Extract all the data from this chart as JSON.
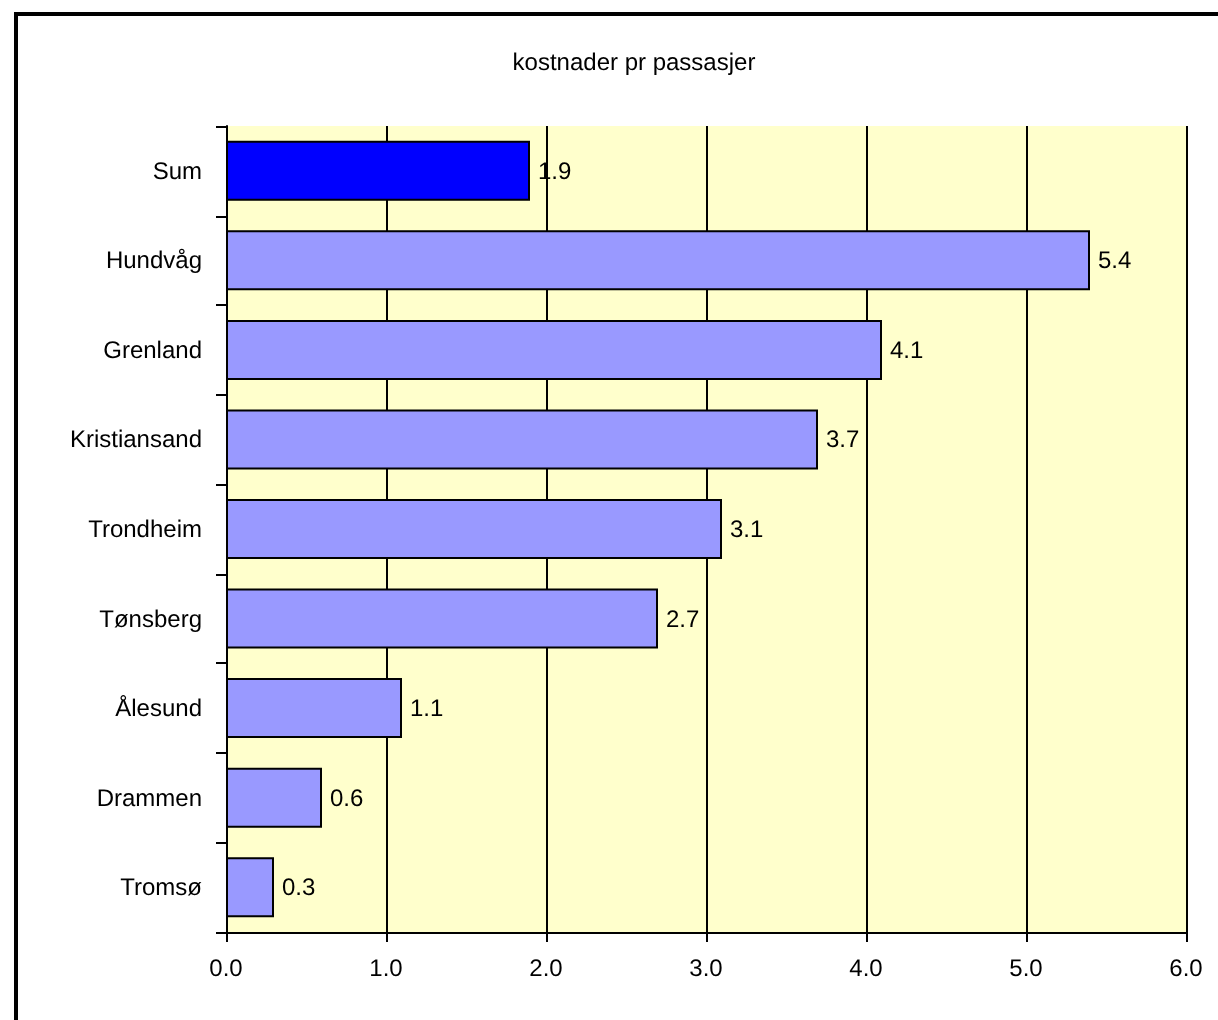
{
  "chart_data": {
    "type": "bar",
    "orientation": "horizontal",
    "title": "kostnader pr passasjer",
    "categories": [
      "Sum",
      "Hundvåg",
      "Grenland",
      "Kristiansand",
      "Trondheim",
      "Tønsberg",
      "Ålesund",
      "Drammen",
      "Tromsø"
    ],
    "values": [
      1.9,
      5.4,
      4.1,
      3.7,
      3.1,
      2.7,
      1.1,
      0.6,
      0.3
    ],
    "colors": [
      "#0000ff",
      "#9999ff",
      "#9999ff",
      "#9999ff",
      "#9999ff",
      "#9999ff",
      "#9999ff",
      "#9999ff",
      "#9999ff"
    ],
    "xlim": [
      0,
      6
    ],
    "xticks": [
      {
        "value": 0,
        "label": "0.0"
      },
      {
        "value": 1,
        "label": "1.0"
      },
      {
        "value": 2,
        "label": "2.0"
      },
      {
        "value": 3,
        "label": "3.0"
      },
      {
        "value": 4,
        "label": "4.0"
      },
      {
        "value": 5,
        "label": "5.0"
      },
      {
        "value": 6,
        "label": "6.0"
      }
    ],
    "grid": "x",
    "data_labels": true
  }
}
